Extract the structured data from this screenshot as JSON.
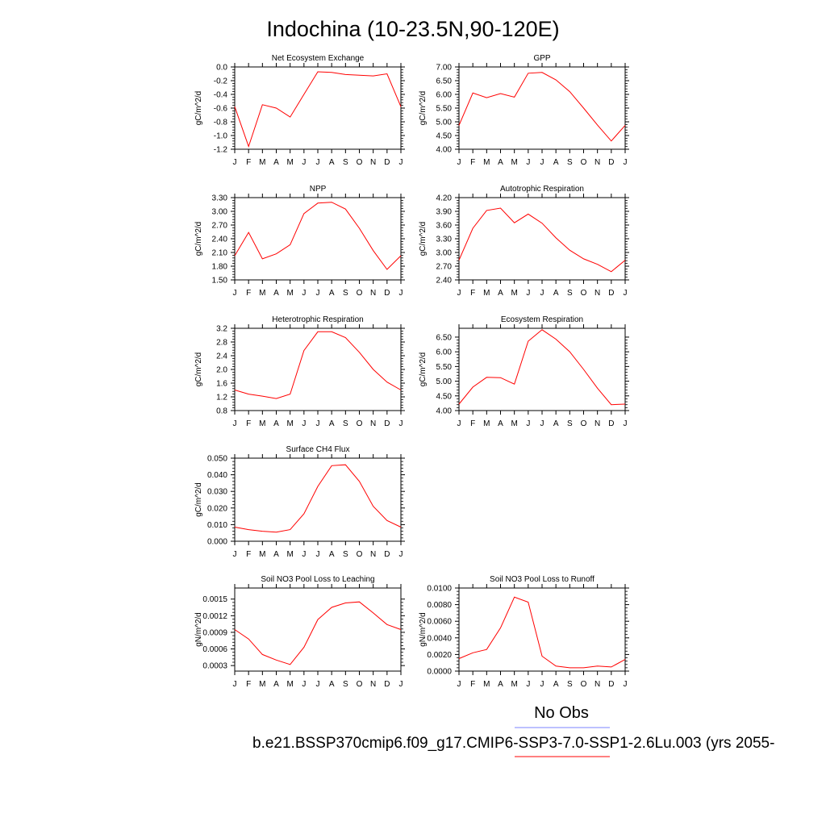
{
  "title": "Indochina (10-23.5N,90-120E)",
  "legend": {
    "obs_label": "No Obs",
    "obs_color": "#7b83ff",
    "model_label": "b.e21.BSSP370cmip6.f09_g17.CMIP6-SSP3-7.0-SSP1-2.6Lu.003 (yrs 2055-",
    "model_color": "#ff0000"
  },
  "chart_data": [
    {
      "type": "line",
      "title": "Net Ecosystem Exchange",
      "ylabel": "gC/m^2/d",
      "x": [
        "J",
        "F",
        "M",
        "A",
        "M",
        "J",
        "J",
        "A",
        "S",
        "O",
        "N",
        "D",
        "J"
      ],
      "ylim": [
        -1.2,
        0.0
      ],
      "yticks": [
        -1.2,
        -1.0,
        -0.8,
        -0.6,
        -0.4,
        -0.2,
        0.0
      ],
      "ytick_labels": [
        "-1.2",
        "-1.0",
        "-0.8",
        "-0.6",
        "-0.4",
        "-0.2",
        "0.0"
      ],
      "series": [
        {
          "values": [
            -0.58,
            -1.16,
            -0.55,
            -0.6,
            -0.73,
            -0.4,
            -0.07,
            -0.08,
            -0.11,
            -0.12,
            -0.13,
            -0.1,
            -0.58
          ],
          "color": "#ff0000"
        }
      ]
    },
    {
      "type": "line",
      "title": "GPP",
      "ylabel": "gC/m^2/d",
      "x": [
        "J",
        "F",
        "M",
        "A",
        "M",
        "J",
        "J",
        "A",
        "S",
        "O",
        "N",
        "D",
        "J"
      ],
      "ylim": [
        4.0,
        7.0
      ],
      "yticks": [
        4.0,
        4.5,
        5.0,
        5.5,
        6.0,
        6.5,
        7.0
      ],
      "ytick_labels": [
        "4.00",
        "4.50",
        "5.00",
        "5.50",
        "6.00",
        "6.50",
        "7.00"
      ],
      "series": [
        {
          "values": [
            4.87,
            6.05,
            5.88,
            6.03,
            5.9,
            6.77,
            6.8,
            6.53,
            6.1,
            5.5,
            4.88,
            4.3,
            4.87
          ],
          "color": "#ff0000"
        }
      ]
    },
    {
      "type": "line",
      "title": "NPP",
      "ylabel": "gC/m^2/d",
      "x": [
        "J",
        "F",
        "M",
        "A",
        "M",
        "J",
        "J",
        "A",
        "S",
        "O",
        "N",
        "D",
        "J"
      ],
      "ylim": [
        1.5,
        3.3
      ],
      "yticks": [
        1.5,
        1.8,
        2.1,
        2.4,
        2.7,
        3.0,
        3.3
      ],
      "ytick_labels": [
        "1.50",
        "1.80",
        "2.10",
        "2.40",
        "2.70",
        "3.00",
        "3.30"
      ],
      "series": [
        {
          "values": [
            2.03,
            2.54,
            1.96,
            2.07,
            2.27,
            2.95,
            3.18,
            3.2,
            3.05,
            2.63,
            2.14,
            1.73,
            2.03
          ],
          "color": "#ff0000"
        }
      ]
    },
    {
      "type": "line",
      "title": "Autotrophic Respiration",
      "ylabel": "gC/m^2/d",
      "x": [
        "J",
        "F",
        "M",
        "A",
        "M",
        "J",
        "J",
        "A",
        "S",
        "O",
        "N",
        "D",
        "J"
      ],
      "ylim": [
        2.4,
        4.2
      ],
      "yticks": [
        2.4,
        2.7,
        3.0,
        3.3,
        3.6,
        3.9,
        4.2
      ],
      "ytick_labels": [
        "2.40",
        "2.70",
        "3.00",
        "3.30",
        "3.60",
        "3.90",
        "4.20"
      ],
      "series": [
        {
          "values": [
            2.83,
            3.53,
            3.92,
            3.97,
            3.65,
            3.84,
            3.64,
            3.32,
            3.05,
            2.86,
            2.74,
            2.58,
            2.83
          ],
          "color": "#ff0000"
        }
      ]
    },
    {
      "type": "line",
      "title": "Heterotrophic Respiration",
      "ylabel": "gC/m^2/d",
      "x": [
        "J",
        "F",
        "M",
        "A",
        "M",
        "J",
        "J",
        "A",
        "S",
        "O",
        "N",
        "D",
        "J"
      ],
      "ylim": [
        0.8,
        3.2
      ],
      "yticks": [
        0.8,
        1.2,
        1.6,
        2.0,
        2.4,
        2.8,
        3.2
      ],
      "ytick_labels": [
        "0.8",
        "1.2",
        "1.6",
        "2.0",
        "2.4",
        "2.8",
        "3.2"
      ],
      "series": [
        {
          "values": [
            1.4,
            1.28,
            1.22,
            1.15,
            1.28,
            2.55,
            3.1,
            3.1,
            2.93,
            2.5,
            2.0,
            1.63,
            1.4
          ],
          "color": "#ff0000"
        }
      ]
    },
    {
      "type": "line",
      "title": "Ecosystem Respiration",
      "ylabel": "gC/m^2/d",
      "x": [
        "J",
        "F",
        "M",
        "A",
        "M",
        "J",
        "J",
        "A",
        "S",
        "O",
        "N",
        "D",
        "J"
      ],
      "ylim": [
        4.0,
        6.8
      ],
      "yticks": [
        4.0,
        4.5,
        5.0,
        5.5,
        6.0,
        6.5
      ],
      "ytick_labels": [
        "4.00",
        "4.50",
        "5.00",
        "5.50",
        "6.00",
        "6.50"
      ],
      "series": [
        {
          "values": [
            4.22,
            4.8,
            5.13,
            5.12,
            4.9,
            6.36,
            6.75,
            6.43,
            6.0,
            5.4,
            4.76,
            4.2,
            4.22
          ],
          "color": "#ff0000"
        }
      ]
    },
    {
      "type": "line",
      "title": "Surface CH4 Flux",
      "ylabel": "gC/m^2/d",
      "x": [
        "J",
        "F",
        "M",
        "A",
        "M",
        "J",
        "J",
        "A",
        "S",
        "O",
        "N",
        "D",
        "J"
      ],
      "ylim": [
        0.0,
        0.05
      ],
      "yticks": [
        0.0,
        0.01,
        0.02,
        0.03,
        0.04,
        0.05
      ],
      "ytick_labels": [
        "0.000",
        "0.010",
        "0.020",
        "0.030",
        "0.040",
        "0.050"
      ],
      "series": [
        {
          "values": [
            0.0085,
            0.007,
            0.006,
            0.0055,
            0.007,
            0.0165,
            0.033,
            0.0455,
            0.046,
            0.036,
            0.021,
            0.0125,
            0.0085
          ],
          "color": "#ff0000"
        }
      ]
    },
    {
      "type": "line",
      "title": "Soil NO3 Pool Loss to Leaching",
      "ylabel": "gN/m^2/d",
      "x": [
        "J",
        "F",
        "M",
        "A",
        "M",
        "J",
        "J",
        "A",
        "S",
        "O",
        "N",
        "D",
        "J"
      ],
      "ylim": [
        0.0002,
        0.0017
      ],
      "yticks": [
        0.0003,
        0.0006,
        0.0009,
        0.0012,
        0.0015
      ],
      "ytick_labels": [
        "0.0003",
        "0.0006",
        "0.0009",
        "0.0012",
        "0.0015"
      ],
      "series": [
        {
          "values": [
            0.00095,
            0.00078,
            0.0005,
            0.0004,
            0.00032,
            0.00063,
            0.00113,
            0.00135,
            0.00143,
            0.00145,
            0.00125,
            0.00104,
            0.00095
          ],
          "color": "#ff0000"
        }
      ]
    },
    {
      "type": "line",
      "title": "Soil NO3 Pool Loss to Runoff",
      "ylabel": "gN/m^2/d",
      "x": [
        "J",
        "F",
        "M",
        "A",
        "M",
        "J",
        "J",
        "A",
        "S",
        "O",
        "N",
        "D",
        "J"
      ],
      "ylim": [
        0.0,
        0.01
      ],
      "yticks": [
        0.0,
        0.002,
        0.004,
        0.006,
        0.008,
        0.01
      ],
      "ytick_labels": [
        "0.0000",
        "0.0020",
        "0.0040",
        "0.0060",
        "0.0080",
        "0.0100"
      ],
      "series": [
        {
          "values": [
            0.0015,
            0.0022,
            0.0026,
            0.0052,
            0.0089,
            0.0083,
            0.0018,
            0.0006,
            0.0004,
            0.0004,
            0.0006,
            0.0005,
            0.0014
          ],
          "color": "#ff0000"
        }
      ]
    }
  ]
}
